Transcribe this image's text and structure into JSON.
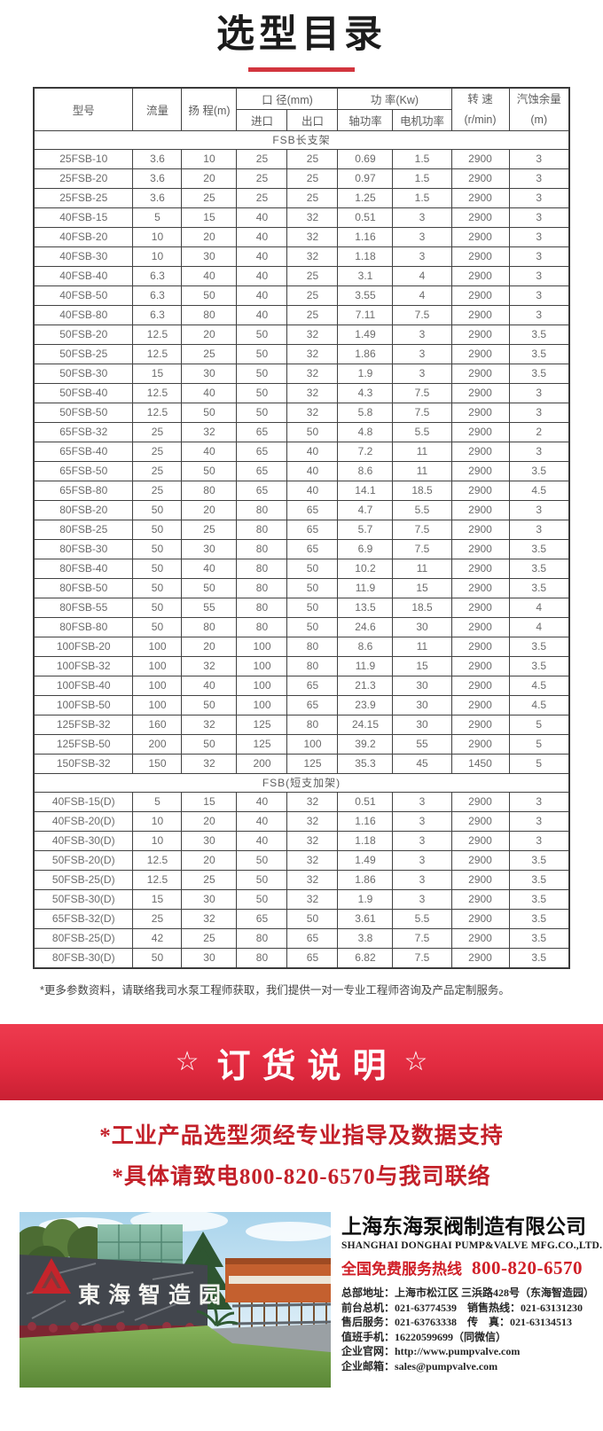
{
  "page": {
    "title": "选型目录",
    "footnote": "*更多参数资料，请联络我司水泵工程师获取，我们提供一对一专业工程师咨询及产品定制服务。"
  },
  "colors": {
    "accent_red": "#d2353e",
    "banner_red_top": "#ee3b4f",
    "banner_red_bottom": "#c92033",
    "notice_red": "#c32029",
    "hotline_red": "#d01f27",
    "table_border": "#3a3a3a",
    "table_text": "#6b6b6b"
  },
  "table": {
    "headers": {
      "model": "型号",
      "flow": "流量",
      "head": "扬 程(m)",
      "diameter": "口 径(mm)",
      "inlet": "进口",
      "outlet": "出口",
      "power": "功 率(Kw)",
      "shaft_power": "轴功率",
      "motor_power": "电机功率",
      "speed_line1": "转 速",
      "speed_line2": "(r/min)",
      "npsh_line1": "汽蚀余量",
      "npsh_line2": "(m)"
    },
    "sections": [
      {
        "label": "FSB长支架",
        "rows": [
          [
            "25FSB-10",
            "3.6",
            "10",
            "25",
            "25",
            "0.69",
            "1.5",
            "2900",
            "3"
          ],
          [
            "25FSB-20",
            "3.6",
            "20",
            "25",
            "25",
            "0.97",
            "1.5",
            "2900",
            "3"
          ],
          [
            "25FSB-25",
            "3.6",
            "25",
            "25",
            "25",
            "1.25",
            "1.5",
            "2900",
            "3"
          ],
          [
            "40FSB-15",
            "5",
            "15",
            "40",
            "32",
            "0.51",
            "3",
            "2900",
            "3"
          ],
          [
            "40FSB-20",
            "10",
            "20",
            "40",
            "32",
            "1.16",
            "3",
            "2900",
            "3"
          ],
          [
            "40FSB-30",
            "10",
            "30",
            "40",
            "32",
            "1.18",
            "3",
            "2900",
            "3"
          ],
          [
            "40FSB-40",
            "6.3",
            "40",
            "40",
            "25",
            "3.1",
            "4",
            "2900",
            "3"
          ],
          [
            "40FSB-50",
            "6.3",
            "50",
            "40",
            "25",
            "3.55",
            "4",
            "2900",
            "3"
          ],
          [
            "40FSB-80",
            "6.3",
            "80",
            "40",
            "25",
            "7.11",
            "7.5",
            "2900",
            "3"
          ],
          [
            "50FSB-20",
            "12.5",
            "20",
            "50",
            "32",
            "1.49",
            "3",
            "2900",
            "3.5"
          ],
          [
            "50FSB-25",
            "12.5",
            "25",
            "50",
            "32",
            "1.86",
            "3",
            "2900",
            "3.5"
          ],
          [
            "50FSB-30",
            "15",
            "30",
            "50",
            "32",
            "1.9",
            "3",
            "2900",
            "3.5"
          ],
          [
            "50FSB-40",
            "12.5",
            "40",
            "50",
            "32",
            "4.3",
            "7.5",
            "2900",
            "3"
          ],
          [
            "50FSB-50",
            "12.5",
            "50",
            "50",
            "32",
            "5.8",
            "7.5",
            "2900",
            "3"
          ],
          [
            "65FSB-32",
            "25",
            "32",
            "65",
            "50",
            "4.8",
            "5.5",
            "2900",
            "2"
          ],
          [
            "65FSB-40",
            "25",
            "40",
            "65",
            "40",
            "7.2",
            "11",
            "2900",
            "3"
          ],
          [
            "65FSB-50",
            "25",
            "50",
            "65",
            "40",
            "8.6",
            "11",
            "2900",
            "3.5"
          ],
          [
            "65FSB-80",
            "25",
            "80",
            "65",
            "40",
            "14.1",
            "18.5",
            "2900",
            "4.5"
          ],
          [
            "80FSB-20",
            "50",
            "20",
            "80",
            "65",
            "4.7",
            "5.5",
            "2900",
            "3"
          ],
          [
            "80FSB-25",
            "50",
            "25",
            "80",
            "65",
            "5.7",
            "7.5",
            "2900",
            "3"
          ],
          [
            "80FSB-30",
            "50",
            "30",
            "80",
            "65",
            "6.9",
            "7.5",
            "2900",
            "3.5"
          ],
          [
            "80FSB-40",
            "50",
            "40",
            "80",
            "50",
            "10.2",
            "11",
            "2900",
            "3.5"
          ],
          [
            "80FSB-50",
            "50",
            "50",
            "80",
            "50",
            "11.9",
            "15",
            "2900",
            "3.5"
          ],
          [
            "80FSB-55",
            "50",
            "55",
            "80",
            "50",
            "13.5",
            "18.5",
            "2900",
            "4"
          ],
          [
            "80FSB-80",
            "50",
            "80",
            "80",
            "50",
            "24.6",
            "30",
            "2900",
            "4"
          ],
          [
            "100FSB-20",
            "100",
            "20",
            "100",
            "80",
            "8.6",
            "11",
            "2900",
            "3.5"
          ],
          [
            "100FSB-32",
            "100",
            "32",
            "100",
            "80",
            "11.9",
            "15",
            "2900",
            "3.5"
          ],
          [
            "100FSB-40",
            "100",
            "40",
            "100",
            "65",
            "21.3",
            "30",
            "2900",
            "4.5"
          ],
          [
            "100FSB-50",
            "100",
            "50",
            "100",
            "65",
            "23.9",
            "30",
            "2900",
            "4.5"
          ],
          [
            "125FSB-32",
            "160",
            "32",
            "125",
            "80",
            "24.15",
            "30",
            "2900",
            "5"
          ],
          [
            "125FSB-50",
            "200",
            "50",
            "125",
            "100",
            "39.2",
            "55",
            "2900",
            "5"
          ],
          [
            "150FSB-32",
            "150",
            "32",
            "200",
            "125",
            "35.3",
            "45",
            "1450",
            "5"
          ]
        ]
      },
      {
        "label": "FSB(短支加架)",
        "rows": [
          [
            "40FSB-15(D)",
            "5",
            "15",
            "40",
            "32",
            "0.51",
            "3",
            "2900",
            "3"
          ],
          [
            "40FSB-20(D)",
            "10",
            "20",
            "40",
            "32",
            "1.16",
            "3",
            "2900",
            "3"
          ],
          [
            "40FSB-30(D)",
            "10",
            "30",
            "40",
            "32",
            "1.18",
            "3",
            "2900",
            "3"
          ],
          [
            "50FSB-20(D)",
            "12.5",
            "20",
            "50",
            "32",
            "1.49",
            "3",
            "2900",
            "3.5"
          ],
          [
            "50FSB-25(D)",
            "12.5",
            "25",
            "50",
            "32",
            "1.86",
            "3",
            "2900",
            "3.5"
          ],
          [
            "50FSB-30(D)",
            "15",
            "30",
            "50",
            "32",
            "1.9",
            "3",
            "2900",
            "3.5"
          ],
          [
            "65FSB-32(D)",
            "25",
            "32",
            "65",
            "50",
            "3.61",
            "5.5",
            "2900",
            "3.5"
          ],
          [
            "80FSB-25(D)",
            "42",
            "25",
            "80",
            "65",
            "3.8",
            "7.5",
            "2900",
            "3.5"
          ],
          [
            "80FSB-30(D)",
            "50",
            "30",
            "80",
            "65",
            "6.82",
            "7.5",
            "2900",
            "3.5"
          ]
        ]
      }
    ]
  },
  "order_banner": {
    "star_left": "☆",
    "title": "订货说明",
    "star_right": "☆"
  },
  "notice": {
    "line1": "*工业产品选型须经专业指导及数据支持",
    "line2": "*具体请致电800-820-6570与我司联络"
  },
  "company": {
    "name": "上海东海泵阀制造有限公司",
    "name_en": "SHANGHAI DONGHAI PUMP&VALVE MFG.CO.,LTD.",
    "hotline_label": "全国免费服务热线",
    "hotline_number": "800-820-6570",
    "photo_sign_text": "東海智造园",
    "contact_lines": [
      "总部地址：上海市松江区 三浜路428号（东海智造园）",
      "前台总机：021-63774539　销售热线：021-63131230",
      "售后服务：021-63763338　传　真：021-63134513",
      "值班手机：16220599699（同微信）",
      "企业官网：http://www.pumpvalve.com",
      "企业邮箱：sales@pumpvalve.com"
    ]
  }
}
